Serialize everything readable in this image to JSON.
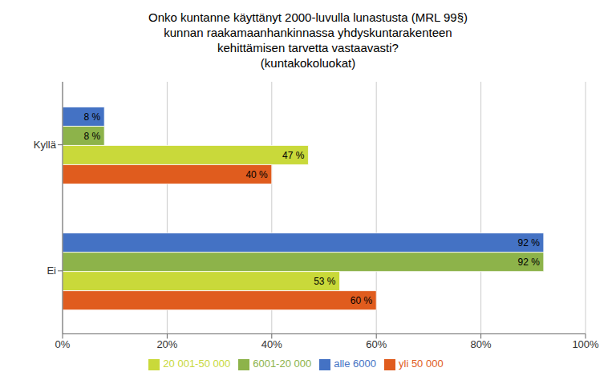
{
  "chart_data": {
    "type": "bar",
    "orientation": "horizontal",
    "title": "Onko kuntanne käyttänyt 2000-luvulla lunastusta (MRL 99§)\nkunnan raakamaanhankinnassa yhdyskuntarakenteen\nkehittämisen tarvetta vastaavasti?\n(kuntakokoluokat)",
    "categories": [
      "Kyllä",
      "Ei"
    ],
    "series": [
      {
        "name": "alle 6000",
        "color": "#4472C4",
        "values": [
          8,
          92
        ],
        "value_labels": [
          "8 %",
          "92 %"
        ]
      },
      {
        "name": "6001-20 000",
        "color": "#8DB34A",
        "values": [
          8,
          92
        ],
        "value_labels": [
          "8 %",
          "92 %"
        ]
      },
      {
        "name": "20 001-50 000",
        "color": "#C9D93A",
        "values": [
          47,
          53
        ],
        "value_labels": [
          "47 %",
          "53 %"
        ]
      },
      {
        "name": "yli 50 000",
        "color": "#E05C1E",
        "values": [
          40,
          60
        ],
        "value_labels": [
          "40 %",
          "60 %"
        ]
      }
    ],
    "xlim": [
      0,
      100
    ],
    "xticks": [
      {
        "value": 0,
        "label": "0%"
      },
      {
        "value": 20,
        "label": "20%"
      },
      {
        "value": 40,
        "label": "40%"
      },
      {
        "value": 60,
        "label": "60%"
      },
      {
        "value": 80,
        "label": "80%"
      },
      {
        "value": 100,
        "label": "100%"
      }
    ],
    "grid": true,
    "legend": "bottom",
    "data_labels": true
  }
}
